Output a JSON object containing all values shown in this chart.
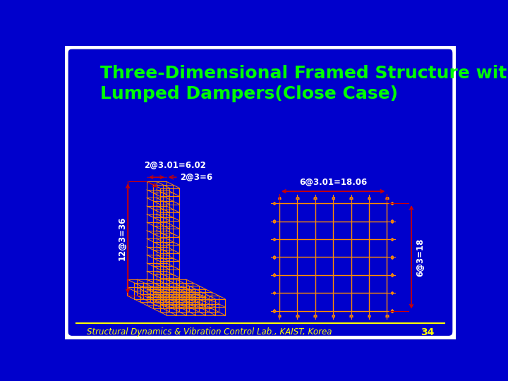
{
  "title_line1": "Three-Dimensional Framed Structure with",
  "title_line2": "Lumped Dampers(Close Case)",
  "title_color": "#00FF00",
  "title_fontsize": 18,
  "bg_color": "#0000CC",
  "border_color": "#FFFFFF",
  "structure_color": "#FF8C00",
  "annotation_color": "#CC0000",
  "annotation_text_color": "#FFFFFF",
  "dim_label_2at3_01": "2@3.01=6.02",
  "dim_label_2at3": "2@3=6",
  "dim_label_6at3_01": "6@3.01=18.06",
  "dim_label_12at3": "12@3=36",
  "dim_label_6at3": "6@3=18",
  "footer_text": "Structural Dynamics & Vibration Control Lab., KAIST, Korea",
  "footer_page": "34",
  "footer_color": "#FFFF00"
}
